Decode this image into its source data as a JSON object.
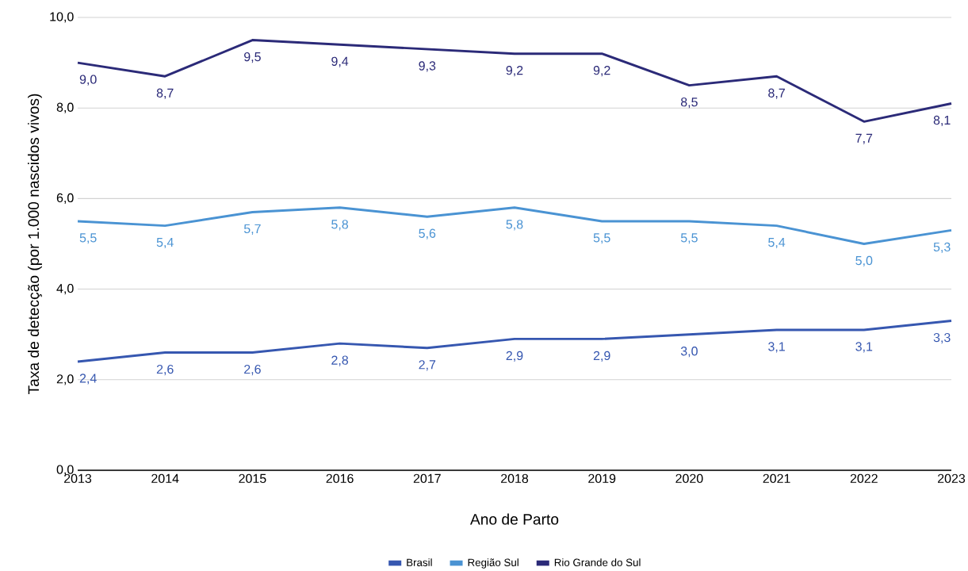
{
  "chart_data": {
    "type": "line",
    "xlabel": "Ano de Parto",
    "ylabel": "Taxa de detecção (por 1.000 nascidos vivos)",
    "x": [
      2013,
      2014,
      2015,
      2016,
      2017,
      2018,
      2019,
      2020,
      2021,
      2022,
      2023
    ],
    "xlim": [
      2013,
      2023
    ],
    "xticks": [
      2013,
      2014,
      2015,
      2016,
      2017,
      2018,
      2019,
      2020,
      2021,
      2022,
      2023
    ],
    "ylim": [
      0,
      10
    ],
    "yticks": [
      {
        "value": 0,
        "label": "0,0"
      },
      {
        "value": 2,
        "label": "2,0"
      },
      {
        "value": 4,
        "label": "4,0"
      },
      {
        "value": 6,
        "label": "6,0"
      },
      {
        "value": 8,
        "label": "8,0"
      },
      {
        "value": 10,
        "label": "10,0"
      }
    ],
    "grid": "y",
    "legend": "bottom",
    "marker": "none",
    "line_style": "solid",
    "series": [
      {
        "name": "Brasil",
        "color": "#3657b0",
        "values": [
          2.4,
          2.6,
          2.6,
          2.8,
          2.7,
          2.9,
          2.9,
          3.0,
          3.1,
          3.1,
          3.3
        ],
        "value_labels": [
          "2,4",
          "2,6",
          "2,6",
          "2,8",
          "2,7",
          "2,9",
          "2,9",
          "3,0",
          "3,1",
          "3,1",
          "3,3"
        ]
      },
      {
        "name": "Região Sul",
        "color": "#4a93d3",
        "values": [
          5.5,
          5.4,
          5.7,
          5.8,
          5.6,
          5.8,
          5.5,
          5.5,
          5.4,
          5.0,
          5.3
        ],
        "value_labels": [
          "5,5",
          "5,4",
          "5,7",
          "5,8",
          "5,6",
          "5,8",
          "5,5",
          "5,5",
          "5,4",
          "5,0",
          "5,3"
        ]
      },
      {
        "name": "Rio Grande do Sul",
        "color": "#2b2a78",
        "values": [
          9.0,
          8.7,
          9.5,
          9.4,
          9.3,
          9.2,
          9.2,
          8.5,
          8.7,
          7.7,
          8.1
        ],
        "value_labels": [
          "9,0",
          "8,7",
          "9,5",
          "9,4",
          "9,3",
          "9,2",
          "9,2",
          "8,5",
          "8,7",
          "7,7",
          "8,1"
        ]
      }
    ]
  }
}
